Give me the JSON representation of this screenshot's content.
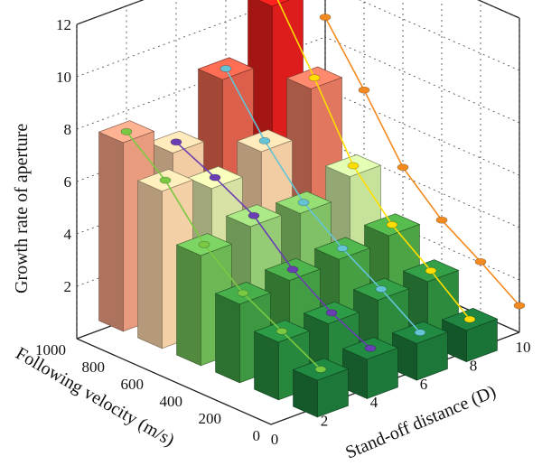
{
  "chart_data": {
    "type": "bar3d",
    "title": "",
    "zlabel": "Growth rate of aperture",
    "ylabel": "Following velocity (m/s)",
    "xlabel": "Stand-off distance (D)",
    "z_ticks": [
      "2",
      "4",
      "6",
      "8",
      "10",
      "12"
    ],
    "y_ticks": [
      "0",
      "200",
      "400",
      "600",
      "800",
      "1000"
    ],
    "x_ticks": [
      "0",
      "2",
      "4",
      "6",
      "8",
      "10"
    ],
    "zlim": [
      0,
      12
    ],
    "grid": true,
    "stand_off_distances": [
      2,
      4,
      6,
      8
    ],
    "following_velocities": [
      0,
      200,
      400,
      600,
      800,
      1000
    ],
    "series": [
      {
        "standoff": 2,
        "values": [
          1.4,
          2.2,
          3.0,
          4.2,
          6.0,
          7.2
        ]
      },
      {
        "standoff": 4,
        "values": [
          1.5,
          2.2,
          3.2,
          4.6,
          5.4,
          6.1
        ]
      },
      {
        "standoff": 6,
        "values": [
          1.4,
          2.4,
          3.3,
          4.4,
          6.1,
          8.2
        ]
      },
      {
        "standoff": 8,
        "values": [
          1.2,
          2.4,
          3.5,
          5.1,
          7.8,
          10.3
        ]
      }
    ],
    "trend_lines": [
      {
        "from": [
          2,
          1000
        ],
        "to": [
          2,
          0
        ],
        "color": "#7ac943"
      },
      {
        "from": [
          4,
          1000
        ],
        "to": [
          4,
          0
        ],
        "color": "#6a3fb3"
      },
      {
        "from": [
          6,
          1000
        ],
        "to": [
          6,
          0
        ],
        "color": "#64c4d6"
      },
      {
        "from": [
          8,
          1000
        ],
        "to": [
          8,
          0
        ],
        "color": "#ffdd00"
      },
      {
        "from": [
          10,
          1000
        ],
        "to": [
          10,
          0
        ],
        "color": "#f28a1f"
      }
    ]
  }
}
